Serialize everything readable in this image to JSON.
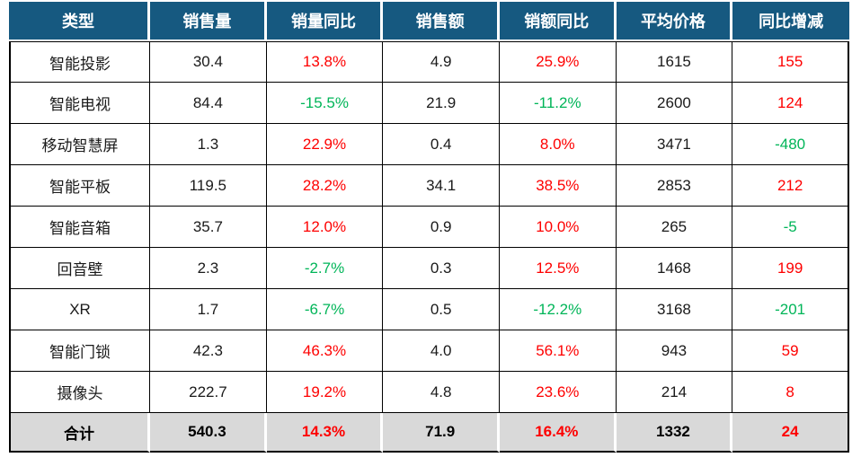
{
  "colors": {
    "header_bg": "#165980",
    "header_text": "#ffffff",
    "positive": "#fe0000",
    "negative": "#00b558",
    "total_bg": "#d9d9d9",
    "grid": "#000000"
  },
  "chart_data": {
    "type": "table",
    "columns": [
      "类型",
      "销售量",
      "销量同比",
      "销售额",
      "销额同比",
      "平均价格",
      "同比增减"
    ],
    "signed_column_indexes": [
      2,
      4,
      6
    ],
    "rows": [
      [
        "智能投影",
        "30.4",
        "13.8%",
        "4.9",
        "25.9%",
        "1615",
        "155"
      ],
      [
        "智能电视",
        "84.4",
        "-15.5%",
        "21.9",
        "-11.2%",
        "2600",
        "124"
      ],
      [
        "移动智慧屏",
        "1.3",
        "22.9%",
        "0.4",
        "8.0%",
        "3471",
        "-480"
      ],
      [
        "智能平板",
        "119.5",
        "28.2%",
        "34.1",
        "38.5%",
        "2853",
        "212"
      ],
      [
        "智能音箱",
        "35.7",
        "12.0%",
        "0.9",
        "10.0%",
        "265",
        "-5"
      ],
      [
        "回音壁",
        "2.3",
        "-2.7%",
        "0.3",
        "12.5%",
        "1468",
        "199"
      ],
      [
        "XR",
        "1.7",
        "-6.7%",
        "0.5",
        "-12.2%",
        "3168",
        "-201"
      ],
      [
        "智能门锁",
        "42.3",
        "46.3%",
        "4.0",
        "56.1%",
        "943",
        "59"
      ],
      [
        "摄像头",
        "222.7",
        "19.2%",
        "4.8",
        "23.6%",
        "214",
        "8"
      ]
    ],
    "total_row": [
      "合计",
      "540.3",
      "14.3%",
      "71.9",
      "16.4%",
      "1332",
      "24"
    ],
    "column_keys": [
      "type",
      "sales-volume",
      "volume-yoy",
      "sales-amount",
      "amount-yoy",
      "avg-price",
      "yoy-change"
    ]
  }
}
